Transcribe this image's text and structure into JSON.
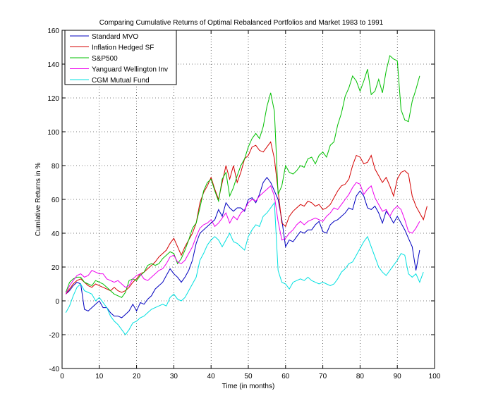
{
  "chart_data": {
    "type": "line",
    "title": "Comparing Cumulative Returns of Optimal Rebalanced Portfolios and Market 1983 to 1991",
    "xlabel": "Time (in months)",
    "ylabel": "Cumlative Returns in %",
    "xlim": [
      0,
      100
    ],
    "ylim": [
      -40,
      160
    ],
    "xticks": [
      0,
      10,
      20,
      30,
      40,
      50,
      60,
      70,
      80,
      90,
      100
    ],
    "yticks": [
      -40,
      -20,
      0,
      20,
      40,
      60,
      80,
      100,
      120,
      140,
      160
    ],
    "grid": true,
    "legend_position": "top-left",
    "x_start": 1,
    "series": [
      {
        "name": "Standard MVO",
        "color": "#0000bf",
        "values": [
          4,
          6,
          9,
          11,
          10,
          -5,
          -6,
          -4,
          -2,
          0,
          -4,
          -4,
          -7,
          -9,
          -9,
          -10,
          -8,
          -6,
          -2,
          -6,
          -1,
          -2,
          1,
          3,
          7,
          9,
          11,
          15,
          19,
          16,
          14,
          11,
          14,
          18,
          24,
          34,
          40,
          42,
          44,
          46,
          48,
          54,
          50,
          58,
          55,
          53,
          55,
          55,
          53,
          60,
          61,
          58,
          63,
          70,
          73,
          70,
          65,
          60,
          48,
          32,
          36,
          35,
          38,
          41,
          40,
          42,
          42,
          45,
          47,
          41,
          40,
          45,
          47,
          48,
          50,
          52,
          55,
          54,
          62,
          65,
          62,
          55,
          54,
          56,
          52,
          46,
          53,
          50,
          46,
          50,
          46,
          42,
          37,
          32,
          18,
          30
        ]
      },
      {
        "name": "Inflation Hedged SF",
        "color": "#d40000",
        "values": [
          4,
          7,
          10,
          12,
          13,
          11,
          9,
          8,
          10,
          9,
          8,
          7,
          6,
          8,
          6,
          5,
          6,
          8,
          11,
          13,
          16,
          17,
          19,
          21,
          23,
          26,
          28,
          30,
          34,
          37,
          32,
          27,
          32,
          36,
          40,
          46,
          58,
          64,
          68,
          73,
          66,
          60,
          70,
          80,
          72,
          80,
          70,
          76,
          84,
          86,
          91,
          92,
          89,
          88,
          91,
          94,
          84,
          65,
          46,
          44,
          50,
          53,
          55,
          57,
          56,
          59,
          58,
          56,
          57,
          54,
          55,
          57,
          61,
          65,
          68,
          69,
          72,
          80,
          86,
          85,
          81,
          82,
          86,
          78,
          74,
          70,
          73,
          68,
          62,
          72,
          76,
          77,
          75,
          62,
          56,
          52,
          48,
          56
        ]
      },
      {
        "name": "S&P500",
        "color": "#00c000",
        "values": [
          5,
          11,
          13,
          14,
          14,
          11,
          10,
          9,
          12,
          11,
          10,
          8,
          6,
          4,
          3,
          2,
          5,
          12,
          13,
          12,
          15,
          17,
          21,
          22,
          21,
          22,
          25,
          27,
          29,
          28,
          22,
          25,
          30,
          36,
          43,
          46,
          55,
          65,
          70,
          72,
          65,
          59,
          72,
          76,
          62,
          67,
          74,
          80,
          84,
          91,
          96,
          99,
          96,
          103,
          115,
          123,
          112,
          63,
          68,
          80,
          76,
          75,
          77,
          80,
          79,
          84,
          85,
          81,
          86,
          88,
          85,
          92,
          94,
          104,
          111,
          121,
          126,
          133,
          130,
          124,
          130,
          137,
          122,
          124,
          131,
          123,
          136,
          145,
          143,
          142,
          113,
          107,
          106,
          118,
          125,
          133
        ]
      },
      {
        "name": "Yanguard Wellington Inv",
        "color": "#ee00ee",
        "values": [
          4,
          9,
          12,
          15,
          16,
          14,
          15,
          18,
          17,
          16,
          16,
          13,
          12,
          11,
          12,
          10,
          8,
          9,
          13,
          15,
          16,
          13,
          12,
          14,
          16,
          18,
          19,
          22,
          26,
          27,
          23,
          22,
          24,
          28,
          32,
          38,
          43,
          45,
          46,
          48,
          44,
          46,
          49,
          52,
          46,
          50,
          48,
          52,
          54,
          58,
          60,
          59,
          62,
          64,
          66,
          68,
          62,
          47,
          36,
          37,
          40,
          42,
          45,
          47,
          45,
          47,
          48,
          49,
          48,
          47,
          50,
          52,
          55,
          54,
          57,
          60,
          63,
          67,
          70,
          69,
          63,
          66,
          68,
          61,
          57,
          53,
          54,
          50,
          54,
          56,
          54,
          48,
          41,
          40,
          43,
          47
        ]
      },
      {
        "name": "CGM Mutual Fund",
        "color": "#00e0e0",
        "values": [
          -7,
          -3,
          3,
          8,
          10,
          6,
          5,
          4,
          0,
          2,
          -1,
          -4,
          -9,
          -12,
          -14,
          -17,
          -20,
          -17,
          -13,
          -12,
          -10,
          -9,
          -7,
          -5,
          -4,
          -3,
          -2,
          -3,
          2,
          4,
          1,
          0,
          2,
          6,
          10,
          14,
          24,
          28,
          33,
          36,
          38,
          36,
          32,
          36,
          40,
          35,
          34,
          32,
          30,
          38,
          42,
          45,
          44,
          50,
          52,
          55,
          58,
          18,
          11,
          10,
          7,
          11,
          12,
          13,
          12,
          14,
          12,
          11,
          10,
          11,
          10,
          9,
          10,
          13,
          17,
          19,
          22,
          23,
          27,
          31,
          35,
          38,
          32,
          26,
          20,
          17,
          15,
          18,
          21,
          24,
          28,
          27,
          16,
          14,
          16,
          11,
          17
        ]
      }
    ]
  }
}
